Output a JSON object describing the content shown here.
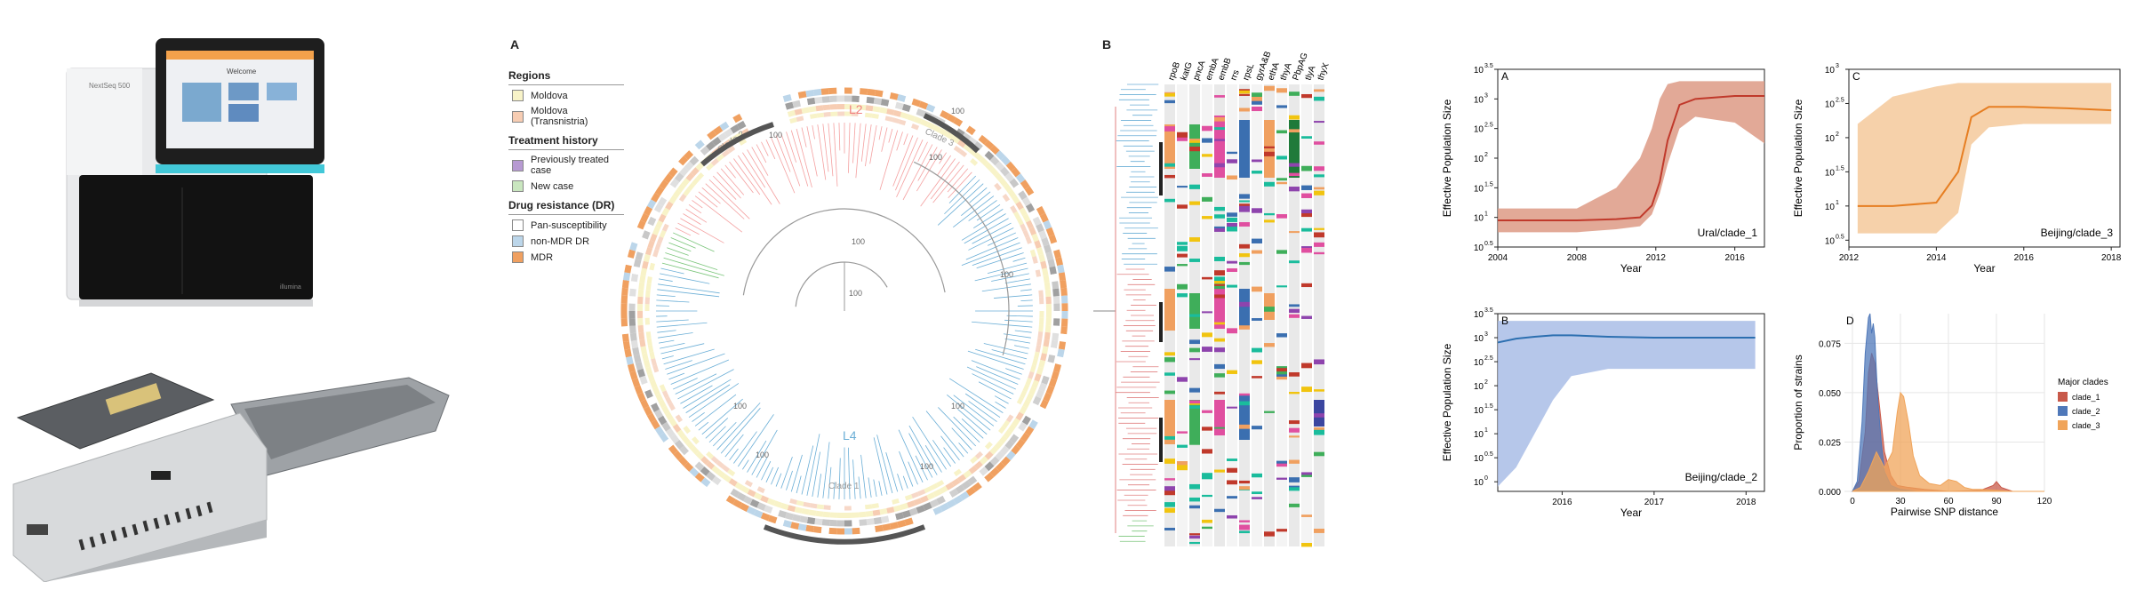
{
  "photos": {
    "sequencer": {
      "brand": "NextSeq 500",
      "screen": "Welcome",
      "logo": "illumina"
    },
    "nanopore": {}
  },
  "panelA": {
    "letter": "A",
    "legend": {
      "sections": [
        {
          "title": "Regions",
          "items": [
            {
              "label": "Moldova",
              "color": "#f8f3c8"
            },
            {
              "label": "Moldova (Transnistria)",
              "color": "#f7cdb3"
            }
          ]
        },
        {
          "title": "Treatment history",
          "items": [
            {
              "label": "Previously treated case",
              "color": "#b79ad2"
            },
            {
              "label": "New case",
              "color": "#c9e6bf"
            }
          ]
        },
        {
          "title": "Drug resistance (DR)",
          "items": [
            {
              "label": "Pan-susceptibility",
              "color": "#ffffff"
            },
            {
              "label": "non-MDR DR",
              "color": "#bcd6ea"
            },
            {
              "label": "MDR",
              "color": "#f0a060"
            }
          ]
        }
      ]
    },
    "tree": {
      "lineages": [
        {
          "label": "L2",
          "color": "#f08080"
        },
        {
          "label": "L4",
          "color": "#6aaed6"
        }
      ],
      "clades": [
        "Clade 1",
        "Clade 2",
        "Clade 3"
      ],
      "bootstrap": "100"
    }
  },
  "panelB": {
    "letter": "B",
    "genes": [
      "rpoB",
      "katG",
      "pncA",
      "embA",
      "embB",
      "rrs",
      "rpsL",
      "gyrA&B",
      "ethA",
      "thyA",
      "PbpAG",
      "tlyA",
      "thyX"
    ]
  },
  "panels": {
    "A": {
      "letter": "A",
      "label": "Ural/clade_1",
      "xlabel": "Year",
      "ylabel": "Effective Population Size"
    },
    "B": {
      "letter": "B",
      "label": "Beijing/clade_2",
      "xlabel": "Year",
      "ylabel": "Effective Population Size"
    },
    "C": {
      "letter": "C",
      "label": "Beijing/clade_3",
      "xlabel": "Year",
      "ylabel": "Effective Population Size"
    },
    "D": {
      "letter": "D",
      "xlabel": "Pairwise SNP distance",
      "ylabel": "Proportion of strains",
      "legend_title": "Major clades",
      "legend": [
        {
          "name": "clade_1",
          "color": "#c8594a"
        },
        {
          "name": "clade_2",
          "color": "#4f78b9"
        },
        {
          "name": "clade_3",
          "color": "#f0a45a"
        }
      ]
    }
  },
  "chart_data": [
    {
      "type": "area",
      "id": "A",
      "title": "Ural/clade_1",
      "xlabel": "Year",
      "ylabel": "Effective Population Size",
      "log_y": true,
      "xlim": [
        2004,
        2017.5
      ],
      "ylim": [
        0.5,
        3.5
      ],
      "xticks": [
        "2004",
        "2008",
        "2012",
        "2016"
      ],
      "yticks": [
        "10^0.5",
        "10^1",
        "10^1.5",
        "10^2",
        "10^2.5",
        "10^3",
        "10^3.5"
      ],
      "color": "#c0392b",
      "band_color": "#dd9a85",
      "x": [
        2004,
        2008,
        2010,
        2011.2,
        2011.8,
        2012.2,
        2012.6,
        2013.2,
        2014,
        2016,
        2017.5
      ],
      "median_log": [
        0.95,
        0.95,
        0.97,
        1.0,
        1.2,
        1.6,
        2.3,
        2.9,
        3.0,
        3.05,
        3.05
      ],
      "lower_log": [
        0.75,
        0.75,
        0.8,
        0.85,
        1.05,
        1.4,
        1.9,
        2.5,
        2.7,
        2.6,
        2.25
      ],
      "upper_log": [
        1.15,
        1.15,
        1.5,
        2.0,
        2.5,
        3.0,
        3.25,
        3.3,
        3.3,
        3.3,
        3.3
      ]
    },
    {
      "type": "area",
      "id": "B",
      "title": "Beijing/clade_2",
      "xlabel": "Year",
      "ylabel": "Effective Population Size",
      "log_y": true,
      "xlim": [
        2015.3,
        2018.2
      ],
      "ylim": [
        -0.2,
        3.5
      ],
      "xticks": [
        "2016",
        "2017",
        "2018"
      ],
      "yticks": [
        "10^0",
        "10^0.5",
        "10^1",
        "10^1.5",
        "10^2",
        "10^2.5",
        "10^3",
        "10^3.5"
      ],
      "color": "#2c6fb0",
      "band_color": "#a9bde6",
      "x": [
        2015.3,
        2015.5,
        2015.7,
        2015.9,
        2016.1,
        2016.5,
        2017,
        2017.5,
        2018.1
      ],
      "median_log": [
        2.9,
        2.98,
        3.02,
        3.05,
        3.05,
        3.02,
        3.0,
        3.0,
        3.0
      ],
      "lower_log": [
        -0.1,
        0.3,
        1.0,
        1.7,
        2.2,
        2.35,
        2.35,
        2.35,
        2.35
      ],
      "upper_log": [
        3.35,
        3.35,
        3.35,
        3.35,
        3.35,
        3.35,
        3.35,
        3.35,
        3.35
      ]
    },
    {
      "type": "area",
      "id": "C",
      "title": "Beijing/clade_3",
      "xlabel": "Year",
      "ylabel": "Effective Population Size",
      "log_y": true,
      "xlim": [
        2012,
        2018.2
      ],
      "ylim": [
        0.4,
        3.0
      ],
      "xticks": [
        "2012",
        "2014",
        "2016",
        "2018"
      ],
      "yticks": [
        "10^0.5",
        "10^1",
        "10^1.5",
        "10^2",
        "10^2.5",
        "10^3"
      ],
      "color": "#e67e22",
      "band_color": "#f5c99b",
      "x": [
        2012.2,
        2013,
        2014,
        2014.5,
        2014.8,
        2015.2,
        2016,
        2017,
        2018
      ],
      "median_log": [
        1.0,
        1.0,
        1.05,
        1.5,
        2.3,
        2.45,
        2.45,
        2.43,
        2.4
      ],
      "lower_log": [
        0.6,
        0.6,
        0.6,
        0.9,
        1.9,
        2.15,
        2.2,
        2.2,
        2.2
      ],
      "upper_log": [
        2.2,
        2.6,
        2.75,
        2.8,
        2.8,
        2.8,
        2.8,
        2.8,
        2.8
      ]
    },
    {
      "type": "area",
      "id": "D",
      "xlabel": "Pairwise SNP distance",
      "ylabel": "Proportion of strains",
      "xlim": [
        -5,
        120
      ],
      "ylim": [
        0,
        0.09
      ],
      "xticks": [
        "0",
        "30",
        "60",
        "90",
        "120"
      ],
      "yticks": [
        "0.000",
        "0.025",
        "0.050",
        "0.075"
      ],
      "legend_title": "Major clades",
      "legend_position": "right",
      "series": [
        {
          "name": "clade_1",
          "color": "#c8594a",
          "x": [
            0,
            4,
            8,
            10,
            12,
            14,
            16,
            18,
            20,
            24,
            28,
            35,
            45,
            60,
            80,
            88,
            90,
            93,
            100,
            120
          ],
          "y": [
            0,
            0.005,
            0.03,
            0.06,
            0.07,
            0.065,
            0.05,
            0.035,
            0.02,
            0.008,
            0.003,
            0.002,
            0.001,
            0,
            0.0005,
            0.003,
            0.005,
            0.002,
            0,
            0
          ]
        },
        {
          "name": "clade_2",
          "color": "#4f78b9",
          "x": [
            0,
            3,
            6,
            8,
            10,
            11,
            12,
            13,
            14,
            15,
            16,
            18,
            20,
            24,
            30,
            40,
            120
          ],
          "y": [
            0,
            0.005,
            0.035,
            0.07,
            0.088,
            0.09,
            0.08,
            0.085,
            0.078,
            0.06,
            0.045,
            0.025,
            0.01,
            0.003,
            0.001,
            0,
            0
          ]
        },
        {
          "name": "clade_3",
          "color": "#f0a45a",
          "x": [
            0,
            5,
            10,
            15,
            20,
            25,
            28,
            30,
            32,
            35,
            38,
            42,
            48,
            55,
            60,
            65,
            70,
            75,
            80,
            90,
            100,
            120
          ],
          "y": [
            0,
            0.002,
            0.01,
            0.02,
            0.012,
            0.02,
            0.04,
            0.05,
            0.048,
            0.035,
            0.018,
            0.008,
            0.004,
            0.003,
            0.006,
            0.005,
            0.002,
            0.001,
            0.001,
            0.0005,
            0,
            0
          ]
        }
      ]
    }
  ]
}
